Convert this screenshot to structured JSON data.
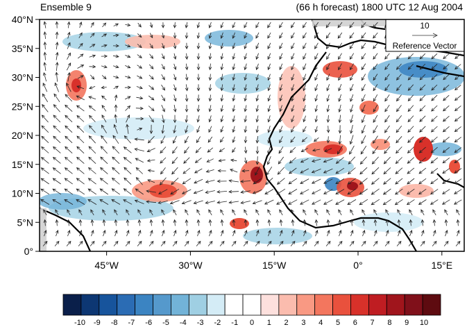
{
  "header": {
    "left_title": "Ensemble 9",
    "right_title": "(66 h forecast) 1800 UTC 12 Aug 2004"
  },
  "map": {
    "lon_range": [
      -57,
      19
    ],
    "lat_range": [
      0,
      40
    ],
    "x_ticks": [
      "45°W",
      "30°W",
      "15°W",
      "0°",
      "15°E"
    ],
    "y_ticks": [
      "40°N",
      "35°N",
      "30°N",
      "25°N",
      "20°N",
      "15°N",
      "10°N",
      "5°N",
      "0°"
    ],
    "reference_vector": {
      "value": "10",
      "label": "Reference Vector"
    }
  },
  "colorbar": {
    "labels": [
      "-10",
      "-9",
      "-8",
      "-7",
      "-6",
      "-5",
      "-4",
      "-3",
      "-2",
      "-1",
      "0",
      "1",
      "2",
      "3",
      "4",
      "5",
      "6",
      "7",
      "8",
      "9",
      "10"
    ],
    "colors": [
      "#0a1f4a",
      "#0d3773",
      "#17549c",
      "#2b6cb4",
      "#3b84c2",
      "#5599cc",
      "#72b3d8",
      "#9fcfe3",
      "#d4ecf6",
      "#ffffff",
      "#ffffff",
      "#fde0dd",
      "#fbbcae",
      "#f99983",
      "#f3765e",
      "#e9513d",
      "#d8312a",
      "#bf1d22",
      "#a0151c",
      "#80101a",
      "#5e0b10"
    ]
  }
}
